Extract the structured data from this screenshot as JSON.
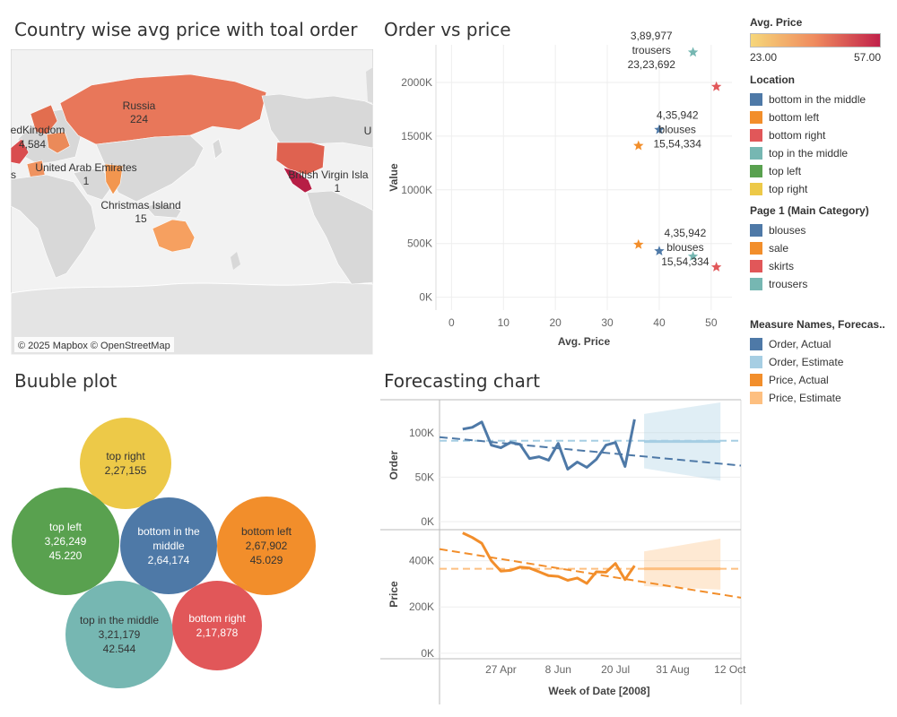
{
  "titles": {
    "map": "Country wise avg price with toal order",
    "scatter": "Order vs price",
    "bubble": "Buuble plot",
    "forecast": "Forecasting chart"
  },
  "map": {
    "attribution": "© 2025 Mapbox © OpenStreetMap",
    "labels": [
      {
        "name": "Russia",
        "value": "224"
      },
      {
        "name": "edKingdom",
        "value": "4,584"
      },
      {
        "name": "United Arab Emirates",
        "value": "1"
      },
      {
        "name": "Christmas Island",
        "value": "15"
      },
      {
        "name": "British Virgin Isla",
        "value": "1"
      },
      {
        "name": "s",
        "value": ""
      },
      {
        "name": "U",
        "value": ""
      }
    ]
  },
  "legends": {
    "avg_price": {
      "title": "Avg. Price",
      "min": "23.00",
      "max": "57.00",
      "low_color": "#f6d77a",
      "high_color": "#c1214a"
    },
    "location": {
      "title": "Location",
      "items": [
        {
          "label": "bottom in the middle",
          "color": "#4e79a7"
        },
        {
          "label": "bottom left",
          "color": "#f28e2b"
        },
        {
          "label": "bottom right",
          "color": "#e15759"
        },
        {
          "label": "top in the middle",
          "color": "#76b7b2"
        },
        {
          "label": "top left",
          "color": "#59a14f"
        },
        {
          "label": "top right",
          "color": "#edc948"
        }
      ]
    },
    "category": {
      "title": "Page 1 (Main Category)",
      "items": [
        {
          "label": "blouses",
          "color": "#4e79a7"
        },
        {
          "label": "sale",
          "color": "#f28e2b"
        },
        {
          "label": "skirts",
          "color": "#e15759"
        },
        {
          "label": "trousers",
          "color": "#76b7b2"
        }
      ]
    },
    "measure": {
      "title": "Measure Names, Forecas..",
      "items": [
        {
          "label": "Order, Actual",
          "color": "#4e79a7"
        },
        {
          "label": "Order, Estimate",
          "color": "#a6cee3"
        },
        {
          "label": "Price, Actual",
          "color": "#f28e2b"
        },
        {
          "label": "Price, Estimate",
          "color": "#fdbf80"
        }
      ]
    }
  },
  "chart_data": [
    {
      "type": "scatter",
      "title": "Order vs price",
      "xlabel": "Avg. Price",
      "ylabel": "Value",
      "xlim": [
        -3,
        54
      ],
      "ylim": [
        -120000,
        2350000
      ],
      "x_ticks": [
        0,
        10,
        20,
        30,
        40,
        50
      ],
      "y_ticks": [
        0,
        500000,
        1000000,
        1500000,
        2000000
      ],
      "y_tick_labels": [
        "0K",
        "500K",
        "1000K",
        "1500K",
        "2000K"
      ],
      "points": [
        {
          "category": "trousers",
          "x": 46.5,
          "y": 2280000,
          "color": "#76b7b2"
        },
        {
          "category": "skirts",
          "x": 51,
          "y": 1960000,
          "color": "#e15759"
        },
        {
          "category": "blouses",
          "x": 40,
          "y": 1560000,
          "color": "#4e79a7"
        },
        {
          "category": "sale",
          "x": 36,
          "y": 1410000,
          "color": "#f28e2b"
        },
        {
          "category": "sale",
          "x": 36,
          "y": 490000,
          "color": "#f28e2b"
        },
        {
          "category": "blouses",
          "x": 40,
          "y": 430000,
          "color": "#4e79a7"
        },
        {
          "category": "trousers",
          "x": 46.5,
          "y": 380000,
          "color": "#76b7b2"
        },
        {
          "category": "skirts",
          "x": 51,
          "y": 280000,
          "color": "#e15759"
        }
      ],
      "annotations": [
        {
          "lines": [
            "3,89,977",
            "trousers",
            "23,23,692"
          ],
          "x": 38.5,
          "y": 2300000
        },
        {
          "lines": [
            "4,35,942",
            "blouses",
            "15,54,334"
          ],
          "x": 43.5,
          "y": 1560000
        },
        {
          "lines": [
            "4,35,942",
            "blouses",
            "15,54,334"
          ],
          "x": 45,
          "y": 465000
        }
      ]
    },
    {
      "type": "bubble",
      "title": "Buuble plot",
      "bubbles": [
        {
          "name": "top right",
          "order": "2,27,155",
          "price": "",
          "color": "#edc948",
          "size": 227155
        },
        {
          "name": "top left",
          "order": "3,26,249",
          "price": "45.220",
          "color": "#59a14f",
          "size": 326249
        },
        {
          "name": "bottom in the middle",
          "order": "2,64,174",
          "price": "",
          "color": "#4e79a7",
          "size": 264174
        },
        {
          "name": "bottom left",
          "order": "2,67,902",
          "price": "45.029",
          "color": "#f28e2b",
          "size": 267902
        },
        {
          "name": "top in the middle",
          "order": "3,21,179",
          "price": "42.544",
          "color": "#76b7b2",
          "size": 321179
        },
        {
          "name": "bottom right",
          "order": "2,17,878",
          "price": "",
          "color": "#e15759",
          "size": 217878
        }
      ]
    },
    {
      "type": "line",
      "title": "Forecasting chart",
      "xlabel": "Week of Date [2008]",
      "x_ticks": [
        "2008-04-27",
        "2008-06-08",
        "2008-07-20",
        "2008-08-31",
        "2008-10-12"
      ],
      "x_tick_labels": [
        "27 Apr",
        "8 Jun",
        "20 Jul",
        "31 Aug",
        "12 Oct"
      ],
      "xlim": [
        "2008-03-13",
        "2008-10-20"
      ],
      "panels": [
        {
          "ylabel": "Order",
          "ylim": [
            -8000,
            135000
          ],
          "y_ticks": [
            0,
            50000,
            100000
          ],
          "y_tick_labels": [
            "0K",
            "50K",
            "100K"
          ],
          "actual_color": "#4e79a7",
          "estimate_color": "#a6cee3",
          "actual": [
            {
              "x": "2008-03-30",
              "y": 104000
            },
            {
              "x": "2008-04-06",
              "y": 106000
            },
            {
              "x": "2008-04-13",
              "y": 112000
            },
            {
              "x": "2008-04-20",
              "y": 86000
            },
            {
              "x": "2008-04-27",
              "y": 83000
            },
            {
              "x": "2008-05-04",
              "y": 89000
            },
            {
              "x": "2008-05-11",
              "y": 87000
            },
            {
              "x": "2008-05-18",
              "y": 71000
            },
            {
              "x": "2008-05-25",
              "y": 73000
            },
            {
              "x": "2008-06-01",
              "y": 69000
            },
            {
              "x": "2008-06-08",
              "y": 88000
            },
            {
              "x": "2008-06-15",
              "y": 59000
            },
            {
              "x": "2008-06-22",
              "y": 67000
            },
            {
              "x": "2008-06-29",
              "y": 61000
            },
            {
              "x": "2008-07-06",
              "y": 70000
            },
            {
              "x": "2008-07-13",
              "y": 86000
            },
            {
              "x": "2008-07-20",
              "y": 89000
            },
            {
              "x": "2008-07-27",
              "y": 62000
            },
            {
              "x": "2008-08-03",
              "y": 115000
            }
          ],
          "trend": [
            {
              "x": "2008-03-13",
              "y": 95000
            },
            {
              "x": "2008-10-20",
              "y": 63000
            }
          ],
          "mean": [
            {
              "x": "2008-03-13",
              "y": 91000
            },
            {
              "x": "2008-10-20",
              "y": 91000
            }
          ],
          "forecast": {
            "start": "2008-08-10",
            "end": "2008-10-05",
            "value": 90000,
            "upper": [
              121000,
              134000
            ],
            "lower": [
              60000,
              46000
            ]
          }
        },
        {
          "ylabel": "Price",
          "ylim": [
            -20000,
            530000
          ],
          "y_ticks": [
            0,
            200000,
            400000
          ],
          "y_tick_labels": [
            "0K",
            "200K",
            "400K"
          ],
          "actual_color": "#f28e2b",
          "estimate_color": "#fdbf80",
          "actual": [
            {
              "x": "2008-03-30",
              "y": 520000
            },
            {
              "x": "2008-04-06",
              "y": 500000
            },
            {
              "x": "2008-04-13",
              "y": 475000
            },
            {
              "x": "2008-04-20",
              "y": 400000
            },
            {
              "x": "2008-04-27",
              "y": 355000
            },
            {
              "x": "2008-05-04",
              "y": 358000
            },
            {
              "x": "2008-05-11",
              "y": 372000
            },
            {
              "x": "2008-05-18",
              "y": 368000
            },
            {
              "x": "2008-05-25",
              "y": 352000
            },
            {
              "x": "2008-06-01",
              "y": 335000
            },
            {
              "x": "2008-06-08",
              "y": 332000
            },
            {
              "x": "2008-06-15",
              "y": 315000
            },
            {
              "x": "2008-06-22",
              "y": 325000
            },
            {
              "x": "2008-06-29",
              "y": 302000
            },
            {
              "x": "2008-07-06",
              "y": 352000
            },
            {
              "x": "2008-07-13",
              "y": 350000
            },
            {
              "x": "2008-07-20",
              "y": 388000
            },
            {
              "x": "2008-07-27",
              "y": 318000
            },
            {
              "x": "2008-08-03",
              "y": 378000
            }
          ],
          "trend": [
            {
              "x": "2008-03-13",
              "y": 450000
            },
            {
              "x": "2008-10-20",
              "y": 240000
            }
          ],
          "mean": [
            {
              "x": "2008-03-13",
              "y": 365000
            },
            {
              "x": "2008-10-20",
              "y": 365000
            }
          ],
          "forecast": {
            "start": "2008-08-10",
            "end": "2008-10-05",
            "value": 365000,
            "upper": [
              440000,
              495000
            ],
            "lower": [
              290000,
              275000
            ]
          }
        }
      ]
    }
  ]
}
